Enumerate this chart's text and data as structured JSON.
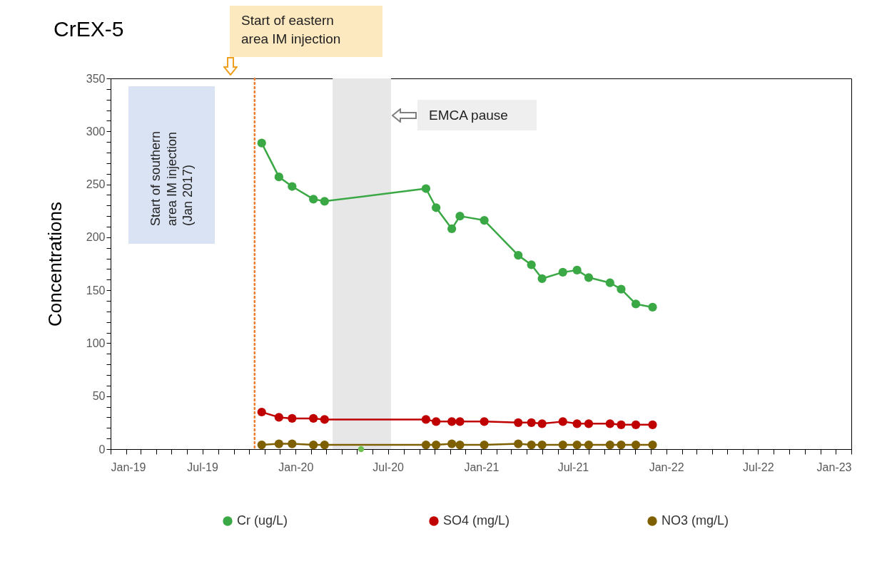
{
  "chart_data": {
    "type": "line",
    "title": "CrEX-5",
    "ylabel": "Concentrations",
    "annotations": [
      "Start of eastern area IM injection",
      "Start of southern area IM injection (Jan 2017)"
    ],
    "x": [
      "2019-10-26",
      "2019-11-29",
      "2019-12-25",
      "2020-02-05",
      "2020-02-27",
      "2020-09-14",
      "2020-10-04",
      "2020-11-04",
      "2020-11-20",
      "2021-01-07",
      "2021-03-15",
      "2021-04-10",
      "2021-05-01",
      "2021-06-11",
      "2021-07-09",
      "2021-08-01",
      "2021-09-12",
      "2021-10-04",
      "2021-11-02",
      "2021-12-05"
    ],
    "series": [
      {
        "name": "Cr  (ug/L)",
        "color": "#3aa845",
        "values": [
          289,
          257,
          248,
          236,
          234,
          246,
          228,
          208,
          220,
          216,
          183,
          174,
          161,
          167,
          169,
          162,
          157,
          151,
          137,
          134
        ]
      },
      {
        "name": "SO4 (mg/L)",
        "color": "#c00000",
        "values": [
          35,
          30,
          29,
          29,
          28,
          28,
          26,
          26,
          26,
          26,
          25,
          25,
          24,
          26,
          24,
          24,
          24,
          23,
          23,
          23
        ]
      },
      {
        "name": "NO3 (mg/L)",
        "color": "#7f6000",
        "values": [
          4,
          5,
          5,
          4,
          4,
          4,
          4,
          5,
          4,
          4,
          5,
          4,
          4,
          4,
          4,
          4,
          4,
          4,
          4,
          4
        ]
      },
      {
        "type": "scatter",
        "color": "#70c050",
        "x": [
          "2020-05-09"
        ],
        "values": [
          0
        ]
      }
    ],
    "marker": "circle",
    "legend": "bottom",
    "grid": false,
    "xlim": [
      "2019-01-01",
      "2023-01-01"
    ],
    "xticks": [
      {
        "value": "2019-01-01",
        "label": "Jan-19"
      },
      {
        "value": "2019-02-01",
        "label": null
      },
      {
        "value": "2019-03-01",
        "label": null
      },
      {
        "value": "2019-04-01",
        "label": null
      },
      {
        "value": "2019-05-01",
        "label": null
      },
      {
        "value": "2019-06-01",
        "label": null
      },
      {
        "value": "2019-07-01",
        "label": "Jul-19"
      },
      {
        "value": "2019-08-01",
        "label": null
      },
      {
        "value": "2019-09-01",
        "label": null
      },
      {
        "value": "2019-10-01",
        "label": null
      },
      {
        "value": "2019-11-01",
        "label": null
      },
      {
        "value": "2019-12-01",
        "label": null
      },
      {
        "value": "2020-01-01",
        "label": "Jan-20"
      },
      {
        "value": "2020-02-01",
        "label": null
      },
      {
        "value": "2020-03-01",
        "label": null
      },
      {
        "value": "2020-04-01",
        "label": null
      },
      {
        "value": "2020-05-01",
        "label": null
      },
      {
        "value": "2020-06-01",
        "label": null
      },
      {
        "value": "2020-07-01",
        "label": "Jul-20"
      },
      {
        "value": "2020-08-01",
        "label": null
      },
      {
        "value": "2020-09-01",
        "label": null
      },
      {
        "value": "2020-10-01",
        "label": null
      },
      {
        "value": "2020-11-01",
        "label": null
      },
      {
        "value": "2020-12-01",
        "label": null
      },
      {
        "value": "2021-01-01",
        "label": "Jan-21"
      },
      {
        "value": "2021-02-01",
        "label": null
      },
      {
        "value": "2021-03-01",
        "label": null
      },
      {
        "value": "2021-04-01",
        "label": null
      },
      {
        "value": "2021-05-01",
        "label": null
      },
      {
        "value": "2021-06-01",
        "label": null
      },
      {
        "value": "2021-07-01",
        "label": "Jul-21"
      },
      {
        "value": "2021-08-01",
        "label": null
      },
      {
        "value": "2021-09-01",
        "label": null
      },
      {
        "value": "2021-10-01",
        "label": null
      },
      {
        "value": "2021-11-01",
        "label": null
      },
      {
        "value": "2021-12-01",
        "label": null
      },
      {
        "value": "2022-01-01",
        "label": "Jan-22"
      },
      {
        "value": "2022-02-01",
        "label": null
      },
      {
        "value": "2022-03-01",
        "label": null
      },
      {
        "value": "2022-04-01",
        "label": null
      },
      {
        "value": "2022-05-01",
        "label": null
      },
      {
        "value": "2022-06-01",
        "label": null
      },
      {
        "value": "2022-07-01",
        "label": "Jul-22"
      },
      {
        "value": "2022-08-01",
        "label": null
      },
      {
        "value": "2022-09-01",
        "label": null
      },
      {
        "value": "2022-10-01",
        "label": null
      },
      {
        "value": "2022-11-01",
        "label": null
      },
      {
        "value": "2022-12-01",
        "label": null
      },
      {
        "value": "2023-01-01",
        "label": "Jan-23"
      }
    ],
    "ylim": [
      0,
      350
    ],
    "yticks": [
      0,
      {
        "value": 10,
        "label": null
      },
      {
        "value": 20,
        "label": null
      },
      {
        "value": 30,
        "label": null
      },
      {
        "value": 40,
        "label": null
      },
      50,
      {
        "value": 60,
        "label": null
      },
      {
        "value": 70,
        "label": null
      },
      {
        "value": 80,
        "label": null
      },
      {
        "value": 90,
        "label": null
      },
      100,
      {
        "value": 110,
        "label": null
      },
      {
        "value": 120,
        "label": null
      },
      {
        "value": 130,
        "label": null
      },
      {
        "value": 140,
        "label": null
      },
      150,
      {
        "value": 160,
        "label": null
      },
      {
        "value": 170,
        "label": null
      },
      {
        "value": 180,
        "label": null
      },
      {
        "value": 190,
        "label": null
      },
      200,
      {
        "value": 210,
        "label": null
      },
      {
        "value": 220,
        "label": null
      },
      {
        "value": 230,
        "label": null
      },
      {
        "value": 240,
        "label": null
      },
      250,
      {
        "value": 260,
        "label": null
      },
      {
        "value": 270,
        "label": null
      },
      {
        "value": 280,
        "label": null
      },
      {
        "value": 290,
        "label": null
      },
      300,
      {
        "value": 310,
        "label": null
      },
      {
        "value": 320,
        "label": null
      },
      {
        "value": 330,
        "label": null
      },
      {
        "value": 340,
        "label": null
      },
      350
    ],
    "ref_lines": [
      {
        "axis": "x",
        "value": "2019-10-12",
        "color": "#ed7d31",
        "line_style": "dotted"
      }
    ],
    "bands": [
      {
        "axis": "x",
        "from": "2020-03-14",
        "to": "2020-07-07",
        "label": "EMCA pause",
        "color": "#e7e7e7"
      }
    ]
  }
}
